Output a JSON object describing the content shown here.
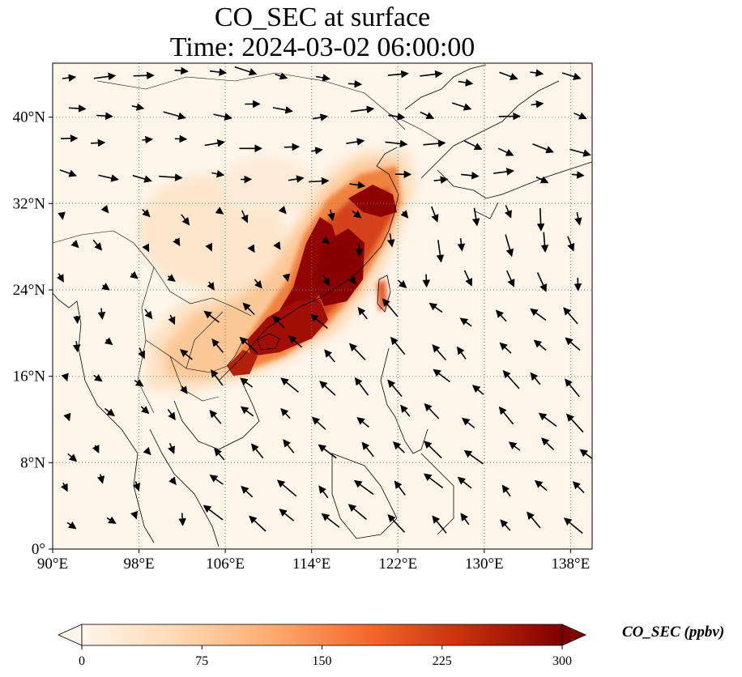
{
  "title": {
    "line1": "CO_SEC at surface",
    "line2": "Time: 2024-03-02 06:00:00"
  },
  "map": {
    "extent": {
      "lon": [
        90,
        140
      ],
      "lat": [
        0,
        45
      ]
    },
    "gridlines": true,
    "lon_ticks": [
      {
        "value": 90,
        "label": "90°E"
      },
      {
        "value": 98,
        "label": "98°E"
      },
      {
        "value": 106,
        "label": "106°E"
      },
      {
        "value": 114,
        "label": "114°E"
      },
      {
        "value": 122,
        "label": "122°E"
      },
      {
        "value": 130,
        "label": "130°E"
      },
      {
        "value": 138,
        "label": "138°E"
      }
    ],
    "lat_ticks": [
      {
        "value": 0,
        "label": "0°"
      },
      {
        "value": 8,
        "label": "8°N"
      },
      {
        "value": 16,
        "label": "16°N"
      },
      {
        "value": 24,
        "label": "24°N"
      },
      {
        "value": 32,
        "label": "32°N"
      },
      {
        "value": 40,
        "label": "40°N"
      }
    ],
    "field": "CO_SEC",
    "features": [
      "coastlines",
      "country borders",
      "wind vectors"
    ]
  },
  "colorbar": {
    "label": "CO_SEC (ppbv)",
    "min": 0,
    "max": 300,
    "extend": "both",
    "ticks": [
      {
        "value": 0,
        "label": "0"
      },
      {
        "value": 75,
        "label": "75"
      },
      {
        "value": 150,
        "label": "150"
      },
      {
        "value": 225,
        "label": "225"
      },
      {
        "value": 300,
        "label": "300"
      }
    ],
    "colors": [
      "#fff5eb",
      "#fdd9b4",
      "#fdaa6f",
      "#f4672c",
      "#c52e0c",
      "#7f0000"
    ]
  }
}
